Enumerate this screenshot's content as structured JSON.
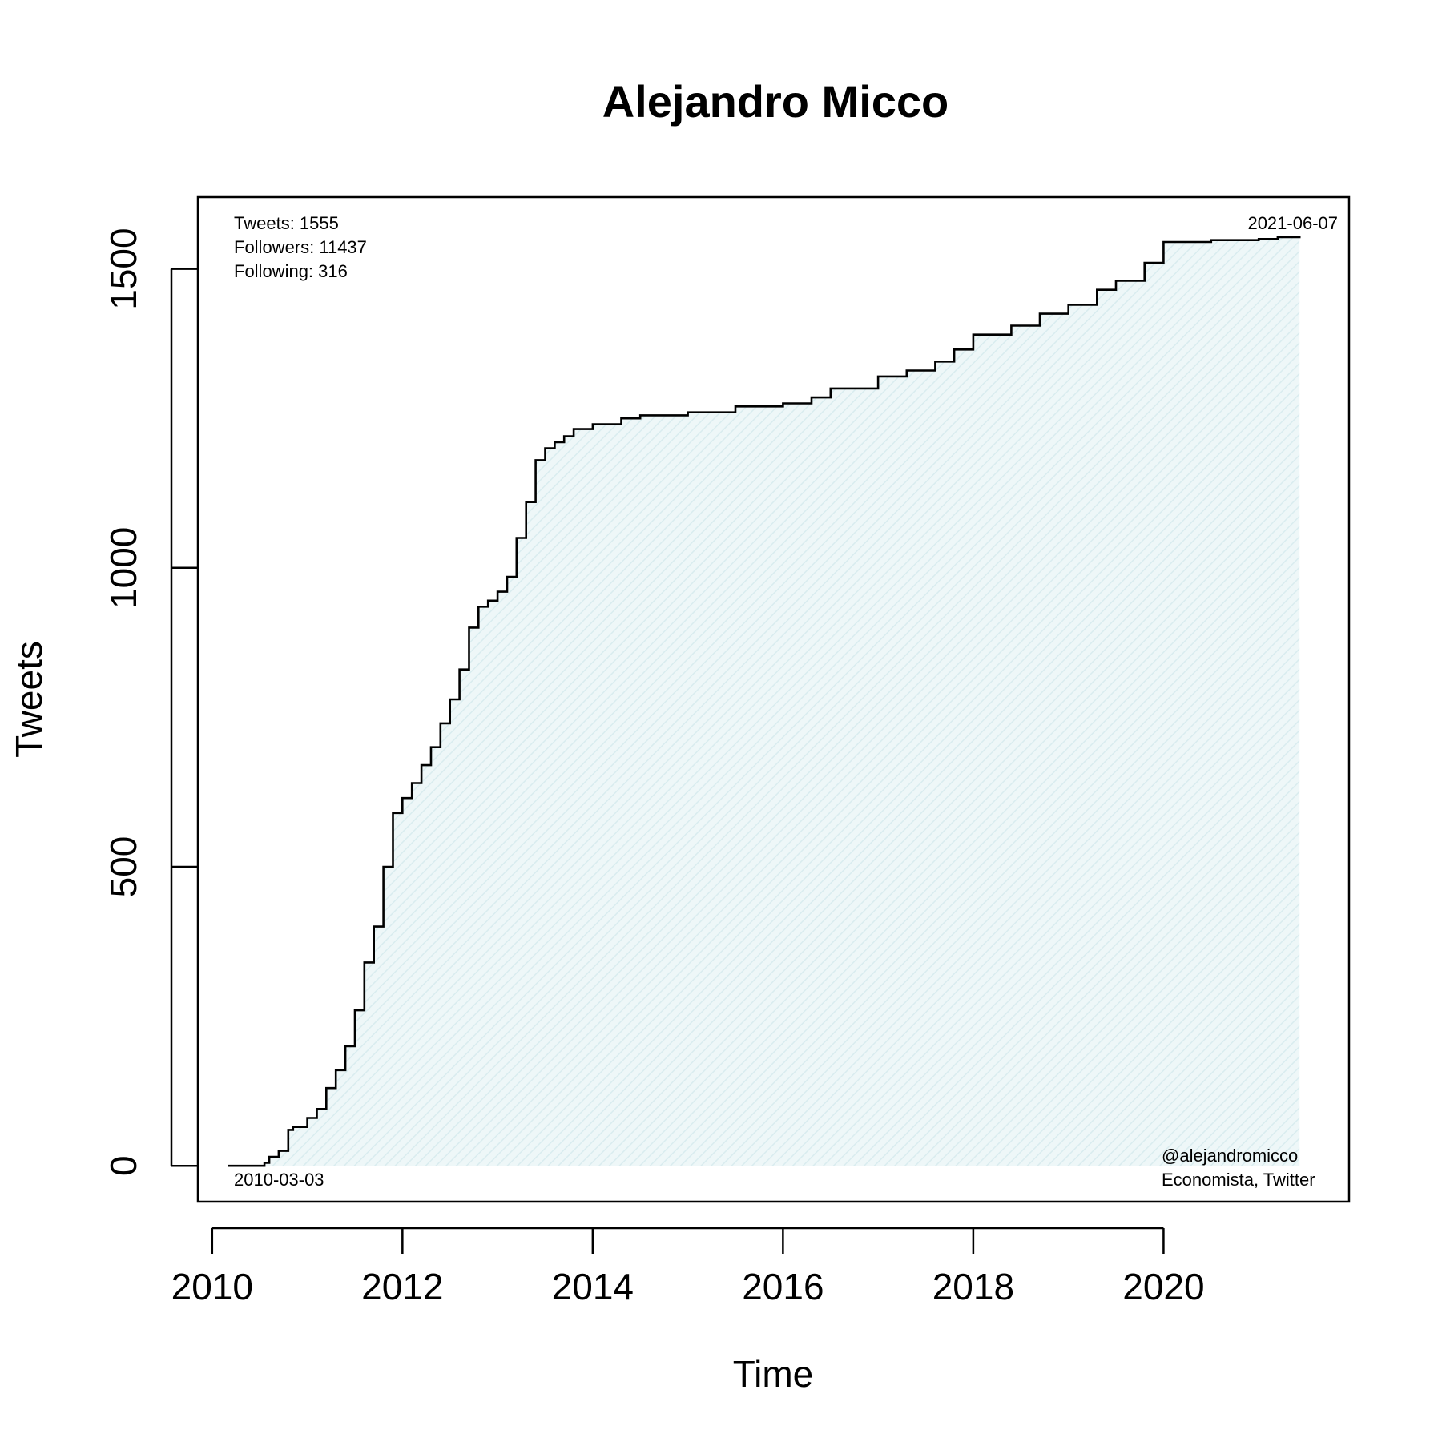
{
  "chart_data": {
    "type": "area",
    "title": "Alejandro Micco",
    "xlabel": "Time",
    "ylabel": "Tweets",
    "xlim": [
      2009.85,
      2021.95
    ],
    "ylim": [
      -60,
      1620
    ],
    "x_ticks": [
      2010,
      2012,
      2014,
      2016,
      2018,
      2020
    ],
    "x_tick_labels": [
      "2010",
      "2012",
      "2014",
      "2016",
      "2018",
      "2020"
    ],
    "y_ticks": [
      0,
      500,
      1000,
      1500
    ],
    "y_tick_labels": [
      "0",
      "500",
      "1000",
      "1500"
    ],
    "grid": false,
    "fill_color": "#e6f2f4",
    "line_color": "#000000",
    "series": [
      {
        "x": [
          2010.17,
          2010.55,
          2010.6,
          2010.7,
          2010.8,
          2010.85,
          2011.0,
          2011.1,
          2011.2,
          2011.3,
          2011.4,
          2011.5,
          2011.6,
          2011.7,
          2011.8,
          2011.9,
          2012.0,
          2012.1,
          2012.2,
          2012.3,
          2012.4,
          2012.5,
          2012.6,
          2012.7,
          2012.8,
          2012.9,
          2013.0,
          2013.1,
          2013.2,
          2013.3,
          2013.4,
          2013.5,
          2013.6,
          2013.7,
          2013.8,
          2014.0,
          2014.3,
          2014.5,
          2015.0,
          2015.5,
          2016.0,
          2016.3,
          2016.5,
          2017.0,
          2017.3,
          2017.6,
          2017.8,
          2018.0,
          2018.4,
          2018.7,
          2019.0,
          2019.3,
          2019.5,
          2019.8,
          2020.0,
          2020.5,
          2021.0,
          2021.2,
          2021.43
        ],
        "y": [
          0,
          5,
          15,
          25,
          60,
          65,
          80,
          95,
          130,
          160,
          200,
          260,
          340,
          400,
          500,
          590,
          615,
          640,
          670,
          700,
          740,
          780,
          830,
          900,
          935,
          945,
          960,
          985,
          1050,
          1110,
          1180,
          1200,
          1210,
          1220,
          1232,
          1240,
          1250,
          1255,
          1260,
          1270,
          1275,
          1285,
          1300,
          1320,
          1330,
          1345,
          1365,
          1390,
          1405,
          1425,
          1440,
          1465,
          1480,
          1510,
          1545,
          1548,
          1550,
          1553,
          1555
        ]
      }
    ],
    "annotations": {
      "tweets": "Tweets: 1555",
      "followers": "Followers: 11437",
      "following": "Following: 316",
      "end_date": "2021-06-07",
      "start_date": "2010-03-03",
      "handle": "@alejandromicco",
      "description": "Economista, Twitter"
    }
  }
}
